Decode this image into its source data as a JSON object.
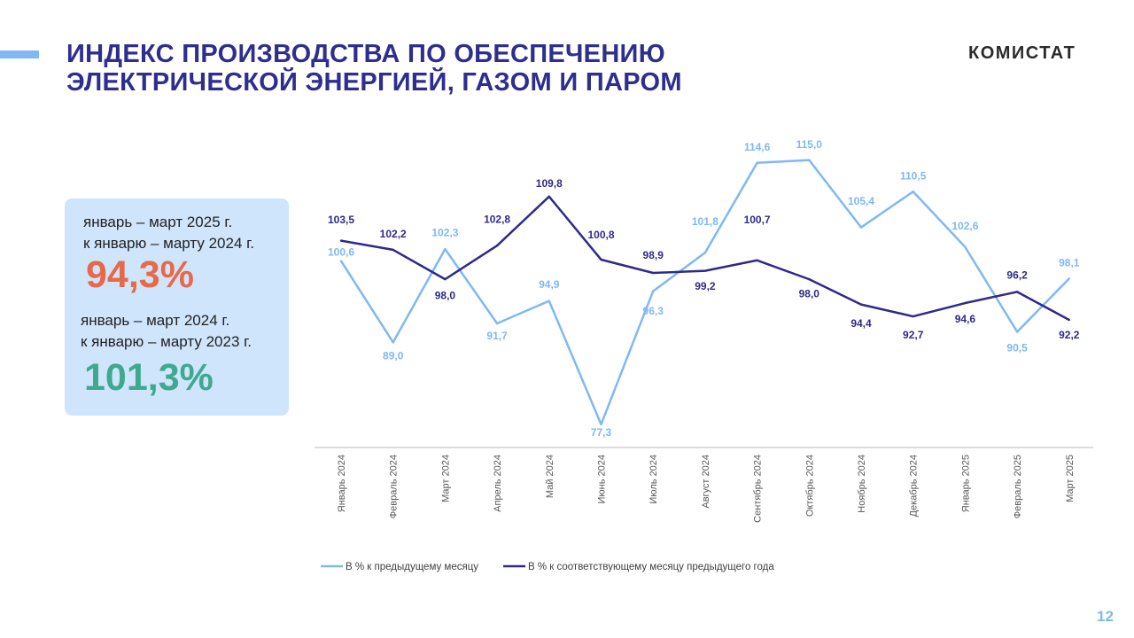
{
  "header": {
    "title_line1": "ИНДЕКС ПРОИЗВОДСТВА ПО ОБЕСПЕЧЕНИЮ",
    "title_line2": "ЭЛЕКТРИЧЕСКОЙ ЭНЕРГИЕЙ, ГАЗОМ И ПАРОМ",
    "logo": "КОМИСТАТ"
  },
  "summary": {
    "cap1_line1": "январь – март 2025 г.",
    "cap1_line2": "к январю – марту 2024 г.",
    "value1": "94,3%",
    "cap2_line1": "январь – март 2024 г.",
    "cap2_line2": "к январю – марту 2023 г.",
    "value2": "101,3%"
  },
  "page_number": "12",
  "colors": {
    "light": "#7fb8f5",
    "dark": "#2e2a8c",
    "value1": "#e8694a",
    "value2": "#3fa98f"
  },
  "chart_data": {
    "type": "line",
    "categories": [
      "Январь 2024",
      "Февраль 2024",
      "Март 2024",
      "Апрель 2024",
      "Май 2024",
      "Июнь 2024",
      "Июль 2024",
      "Август 2024",
      "Сентябрь 2024",
      "Октябрь 2024",
      "Ноябрь 2024",
      "Декабрь 2024",
      "Январь 2025",
      "Февраль 2025",
      "Март 2025"
    ],
    "series": [
      {
        "name": "В % к предыдущему месяцу",
        "values": [
          100.6,
          89.0,
          102.3,
          91.7,
          94.9,
          77.3,
          96.3,
          101.8,
          114.6,
          115.0,
          105.4,
          110.5,
          102.6,
          90.5,
          98.1
        ],
        "labels": [
          "100,6",
          "89,0",
          "102,3",
          "91,7",
          "94,9",
          "77,3",
          "96,3",
          "101,8",
          "114,6",
          "115,0",
          "105,4",
          "110,5",
          "102,6",
          "90,5",
          "98,1"
        ]
      },
      {
        "name": "В % к соответствующему месяцу предыдущего года",
        "values": [
          103.5,
          102.2,
          98.0,
          102.8,
          109.8,
          100.8,
          98.9,
          99.2,
          100.7,
          98.0,
          94.4,
          92.7,
          94.6,
          96.2,
          92.2
        ],
        "labels": [
          "103,5",
          "102,2",
          "98,0",
          "102,8",
          "109,8",
          "100,8",
          "98,9",
          "99,2",
          "100,7",
          "98,0",
          "94,4",
          "92,7",
          "94,6",
          "96,2",
          "92,2"
        ]
      }
    ],
    "ylim": [
      74,
      119
    ],
    "grid": false,
    "legend": "bottom"
  }
}
